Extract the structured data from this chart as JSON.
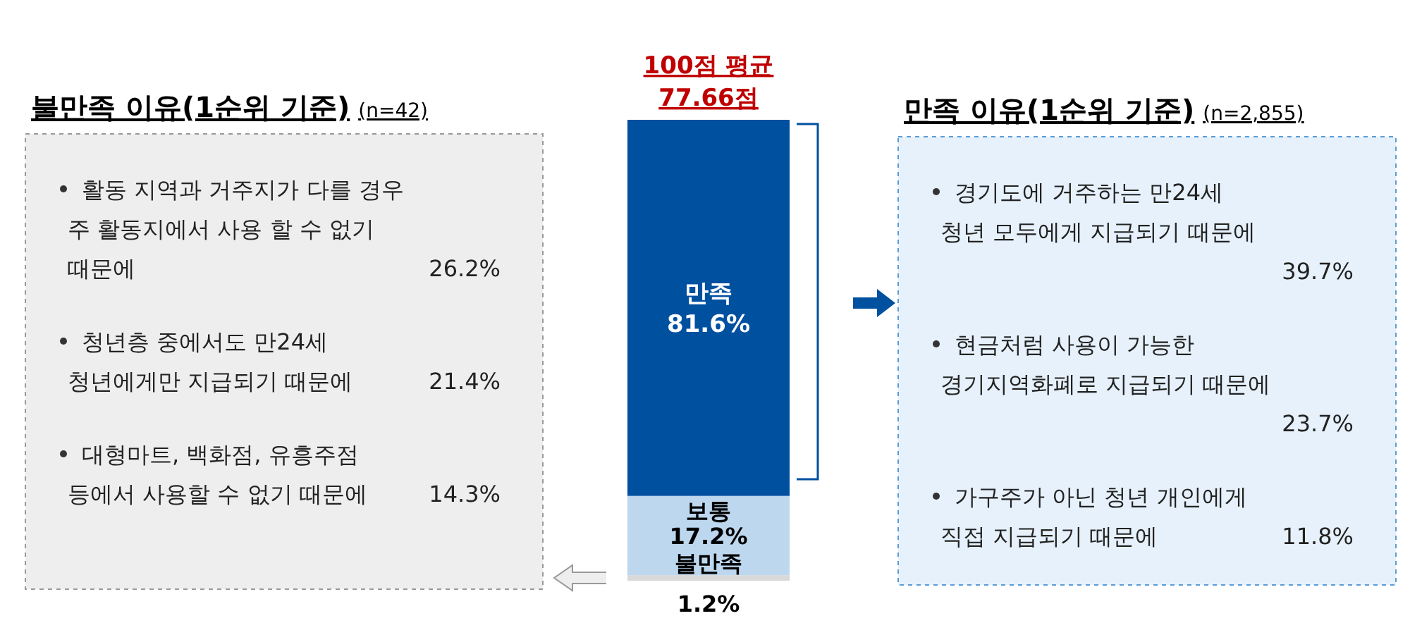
{
  "chart_data": [
    {
      "type": "other",
      "title": "불만족 이유(1순위 기준)",
      "subtitle": "(n=42)",
      "annotations": [
        "활동 지역과 거주지가 다를 경우\n주 활동지에서 사용 할 수 없기\n때문에",
        "26.2%",
        "청년층 중에서도 만24세\n청년에게만 지급되기 때문에",
        "21.4%",
        "대형마트, 백화점, 유흥주점\n등에서 사용할 수 없기 때문에",
        "14.3%"
      ]
    },
    {
      "type": "bar",
      "stacked": true,
      "title": "100점 평균",
      "subtitle": "77.66점",
      "categories": [
        null
      ],
      "series": [
        {
          "name": "불만족",
          "color": "#d9d9d9",
          "values": [
            1.2
          ],
          "value_labels": [
            "1.2%"
          ]
        },
        {
          "name": "보통",
          "color": "#bdd7ee",
          "values": [
            17.2
          ],
          "value_labels": [
            "17.2%"
          ]
        },
        {
          "name": "만족",
          "color": "#0050a0",
          "values": [
            81.6
          ],
          "value_labels": [
            "81.6%"
          ]
        }
      ]
    },
    {
      "type": "other",
      "title": "만족 이유(1순위 기준)",
      "subtitle": "(n=2,855)",
      "annotations": [
        "경기도에 거주하는 만24세\n청년 모두에게 지급되기 때문에",
        "39.7%",
        "현금처럼 사용이 가능한\n경기지역화폐로 지급되기 때문에",
        "23.7%",
        "가구주가 아닌 청년 개인에게\n직접 지급되기 때문에",
        "11.8%"
      ]
    }
  ]
}
